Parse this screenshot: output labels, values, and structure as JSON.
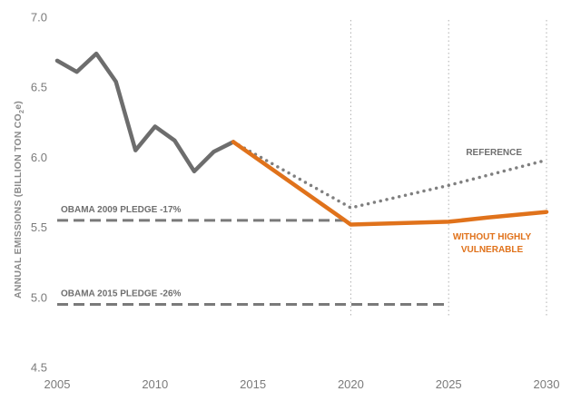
{
  "chart_data": {
    "type": "line",
    "xlabel": "",
    "ylabel": "ANNUAL EMISSIONS (BILLION TON CO2e)",
    "ylabel_parts": [
      "ANNUAL EMISSIONS (BILLION TON CO",
      "2",
      "e)"
    ],
    "xlim": [
      2005,
      2030
    ],
    "ylim": [
      4.5,
      7.0
    ],
    "x_ticks": [
      "2005",
      "2010",
      "2015",
      "2020",
      "2025",
      "2030"
    ],
    "y_ticks": [
      "4.5",
      "5.0",
      "5.5",
      "6.0",
      "6.5",
      "7.0"
    ],
    "grid": false,
    "vertical_reference_lines_x": [
      2020,
      2025,
      2030
    ],
    "series": [
      {
        "role": "historical",
        "color": "#6d6d6d",
        "style": "solid",
        "x": [
          2005,
          2006,
          2007,
          2008,
          2009,
          2010,
          2011,
          2012,
          2013,
          2014
        ],
        "values": [
          6.69,
          6.61,
          6.74,
          6.54,
          6.05,
          6.22,
          6.12,
          5.9,
          6.04,
          6.11
        ]
      },
      {
        "name": "REFERENCE",
        "color": "#7f7f7f",
        "style": "dotted",
        "x": [
          2014,
          2020,
          2025,
          2030
        ],
        "values": [
          6.11,
          5.64,
          5.8,
          5.98
        ]
      },
      {
        "name": "WITHOUT HIGHLY VULNERABLE",
        "name_lines": [
          "WITHOUT HIGHLY",
          "VULNERABLE"
        ],
        "color": "#e0721b",
        "style": "solid",
        "x": [
          2014,
          2020,
          2025,
          2027,
          2030
        ],
        "values": [
          6.11,
          5.52,
          5.54,
          5.57,
          5.61
        ]
      }
    ],
    "reference_lines": [
      {
        "label": "OBAMA 2009 PLEDGE -17%",
        "value": 5.55,
        "x_range": [
          2005,
          2020
        ],
        "color": "#7a7a7a",
        "style": "dashed"
      },
      {
        "label": "OBAMA 2015 PLEDGE -26%",
        "value": 4.95,
        "x_range": [
          2005,
          2025
        ],
        "color": "#7a7a7a",
        "style": "dashed"
      }
    ]
  }
}
